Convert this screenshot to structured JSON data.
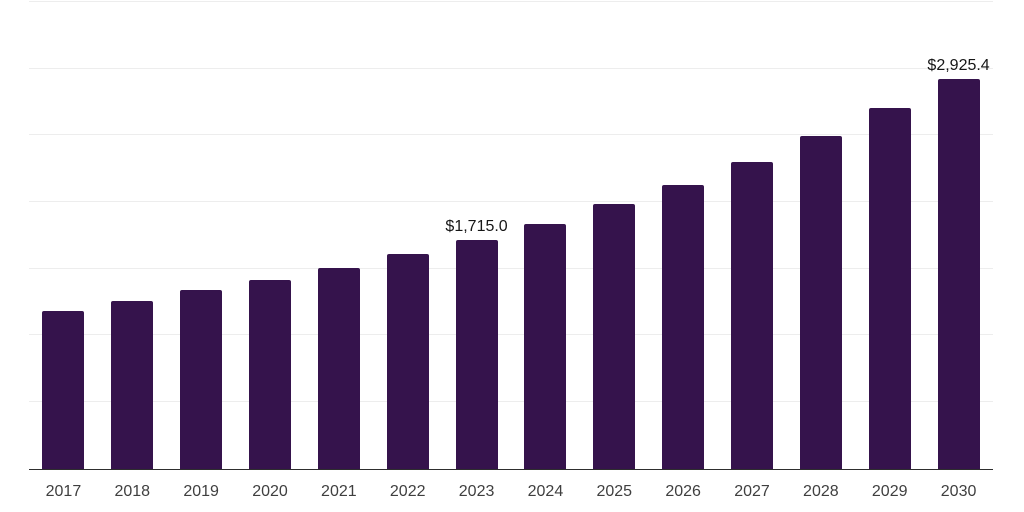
{
  "chart_data": {
    "type": "bar",
    "title": "",
    "xlabel": "",
    "ylabel": "",
    "categories": [
      "2017",
      "2018",
      "2019",
      "2020",
      "2021",
      "2022",
      "2023",
      "2024",
      "2025",
      "2026",
      "2027",
      "2028",
      "2029",
      "2030"
    ],
    "values": [
      1181,
      1255,
      1337,
      1418,
      1502,
      1607,
      1715.0,
      1838,
      1985,
      2127,
      2297,
      2492,
      2702,
      2925.4
    ],
    "data_labels": {
      "2023": "$1,715.0",
      "2030": "$2,925.4"
    },
    "ylim": [
      0,
      3500
    ],
    "gridline_step": 500,
    "grid": true,
    "legend_position": "none",
    "colors": {
      "bar": "#35134c",
      "gridline": "#ededed",
      "axis_line": "#2e2e2e",
      "value_label": "#161616",
      "tick_label": "#3f3f3f",
      "background": "#ffffff"
    }
  }
}
